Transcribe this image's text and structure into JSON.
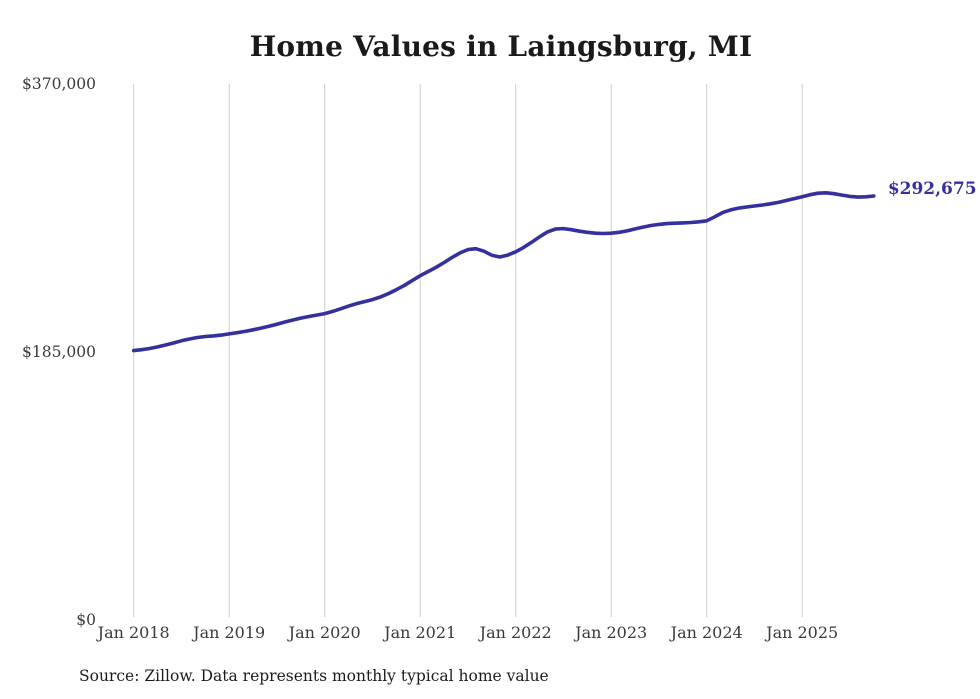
{
  "chart_data": {
    "type": "line",
    "title": "Home Values in Laingsburg, MI",
    "source_note": "Source: Zillow. Data represents monthly typical home value",
    "frequency": "monthly",
    "x_start": "2018-01",
    "x_end": "2025-10",
    "x_tick_labels": [
      "Jan 2018",
      "Jan 2019",
      "Jan 2020",
      "Jan 2021",
      "Jan 2022",
      "Jan 2023",
      "Jan 2024",
      "Jan 2025"
    ],
    "y_ticks": [
      {
        "label": "$370,000",
        "value": 370000
      },
      {
        "label": "$185,000",
        "value": 185000
      },
      {
        "label": "$0",
        "value": 0
      }
    ],
    "ylim": [
      0,
      370000
    ],
    "grid": "vertical-only",
    "legend": "none",
    "latest_value": 292675,
    "latest_value_label": "$292,675",
    "colors": {
      "line": "#34309e",
      "grid": "#cccccc",
      "title": "#1a1a1a",
      "axis_label": "#3a3a3a",
      "end_label": "#34309e",
      "source": "#1c1c1c"
    },
    "series": [
      {
        "name": "Typical home value",
        "values": [
          186000,
          186600,
          187400,
          188500,
          189800,
          191200,
          192700,
          194000,
          195000,
          195700,
          196100,
          196700,
          197500,
          198300,
          199200,
          200300,
          201500,
          202800,
          204200,
          205700,
          207100,
          208400,
          209500,
          210500,
          211500,
          213000,
          214800,
          216700,
          218400,
          219800,
          221200,
          223000,
          225300,
          228000,
          231000,
          234300,
          237700,
          240600,
          243500,
          246800,
          250200,
          253400,
          255700,
          256300,
          254600,
          251800,
          250600,
          251900,
          254200,
          257200,
          260700,
          264500,
          267900,
          269900,
          270200,
          269400,
          268400,
          267600,
          267000,
          266800,
          267000,
          267600,
          268600,
          270000,
          271200,
          272300,
          273100,
          273600,
          273900,
          274100,
          274400,
          274900,
          275600,
          278300,
          281200,
          283100,
          284300,
          285100,
          285800,
          286500,
          287300,
          288300,
          289600,
          290900,
          292100,
          293600,
          294600,
          294900,
          294300,
          293300,
          292400,
          291900,
          292100,
          292675
        ]
      }
    ]
  }
}
